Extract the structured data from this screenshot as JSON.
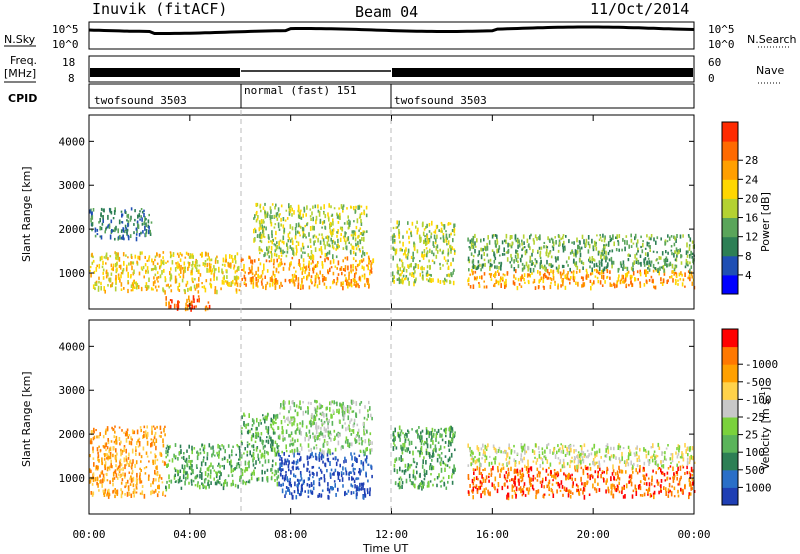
{
  "header": {
    "station": "Inuvik (fitACF)",
    "beam": "Beam 04",
    "date": "11/Oct/2014"
  },
  "strip": {
    "nsky_label": "N.Sky",
    "nsky_ticks": [
      "10^5",
      "10^0"
    ],
    "nsearch_label": "N.Search",
    "nsearch_ticks": [
      "10^5",
      "10^0"
    ],
    "freq_label_1": "Freq.",
    "freq_label_2": "[MHz]",
    "freq_ticks": [
      "18",
      "8"
    ],
    "nave_label": "Nave",
    "nave_ticks": [
      "60",
      "0"
    ],
    "cpid_label": "CPID",
    "cpid_segments": [
      {
        "name": "twofsound 3503",
        "start": 0,
        "end": 6
      },
      {
        "name": "normal (fast) 151",
        "start": 6,
        "end": 12
      },
      {
        "name": "twofsound 3503",
        "start": 12,
        "end": 24
      }
    ]
  },
  "chart_data": [
    {
      "type": "heatmap",
      "panel": "power",
      "ylabel": "Slant Range [km]",
      "xlabel": "",
      "xlim": [
        0,
        24
      ],
      "ylim": [
        180,
        4600
      ],
      "yticks": [
        1000,
        2000,
        3000,
        4000
      ],
      "colorbar": {
        "label": "Power [dB]",
        "ticks": [
          "4",
          "8",
          "12",
          "16",
          "20",
          "24",
          "28"
        ],
        "colors": [
          "#0000ff",
          "#1f4fb4",
          "#2d7f55",
          "#5aa55a",
          "#b4d232",
          "#ffd700",
          "#ff9f00",
          "#ff6a00",
          "#ff2a00"
        ]
      },
      "regions": [
        {
          "t": [
            0.0,
            6.0
          ],
          "r": [
            600,
            1500
          ],
          "level": 20
        },
        {
          "t": [
            3.0,
            4.8
          ],
          "r": [
            200,
            500
          ],
          "level": 28
        },
        {
          "t": [
            6.0,
            11.3
          ],
          "r": [
            700,
            1400
          ],
          "level": 24
        },
        {
          "t": [
            6.5,
            11.0
          ],
          "r": [
            1400,
            2600
          ],
          "level": 16
        },
        {
          "t": [
            0.0,
            2.5
          ],
          "r": [
            1800,
            2500
          ],
          "level": 8
        },
        {
          "t": [
            12.0,
            14.5
          ],
          "r": [
            800,
            2200
          ],
          "level": 16
        },
        {
          "t": [
            15.0,
            24.0
          ],
          "r": [
            700,
            1100
          ],
          "level": 24
        },
        {
          "t": [
            15.0,
            24.0
          ],
          "r": [
            1100,
            1900
          ],
          "level": 12
        }
      ]
    },
    {
      "type": "heatmap",
      "panel": "velocity",
      "ylabel": "Slant Range [km]",
      "xlabel": "Time UT",
      "xlim": [
        0,
        24
      ],
      "ylim": [
        180,
        4600
      ],
      "yticks": [
        1000,
        2000,
        3000,
        4000
      ],
      "xticks": [
        "00:00",
        "04:00",
        "08:00",
        "12:00",
        "16:00",
        "20:00",
        "00:00"
      ],
      "colorbar": {
        "label": "Velocity [m s^-1]",
        "ticks": [
          "1000",
          "500",
          "100",
          "25",
          "-25",
          "-100",
          "-500",
          "-1000"
        ],
        "colors": [
          "#1f3fb4",
          "#2a6fc8",
          "#2d7f55",
          "#5ab45a",
          "#7ad23c",
          "#c8c8c8",
          "#ffd24a",
          "#ffa000",
          "#ff7800",
          "#ff0000"
        ]
      },
      "regions": [
        {
          "t": [
            0.0,
            3.0
          ],
          "r": [
            600,
            2200
          ],
          "level": -100
        },
        {
          "t": [
            3.0,
            6.0
          ],
          "r": [
            800,
            1800
          ],
          "level": 100
        },
        {
          "t": [
            6.0,
            7.5
          ],
          "r": [
            900,
            2500
          ],
          "level": 100
        },
        {
          "t": [
            7.5,
            11.2
          ],
          "r": [
            600,
            1600
          ],
          "level": 1000
        },
        {
          "t": [
            7.5,
            11.2
          ],
          "r": [
            1600,
            2800
          ],
          "level": 25
        },
        {
          "t": [
            12.0,
            14.5
          ],
          "r": [
            800,
            2200
          ],
          "level": 100
        },
        {
          "t": [
            15.0,
            24.0
          ],
          "r": [
            600,
            1300
          ],
          "level": -500
        },
        {
          "t": [
            15.0,
            24.0
          ],
          "r": [
            1300,
            1800
          ],
          "level": -25
        }
      ]
    }
  ]
}
